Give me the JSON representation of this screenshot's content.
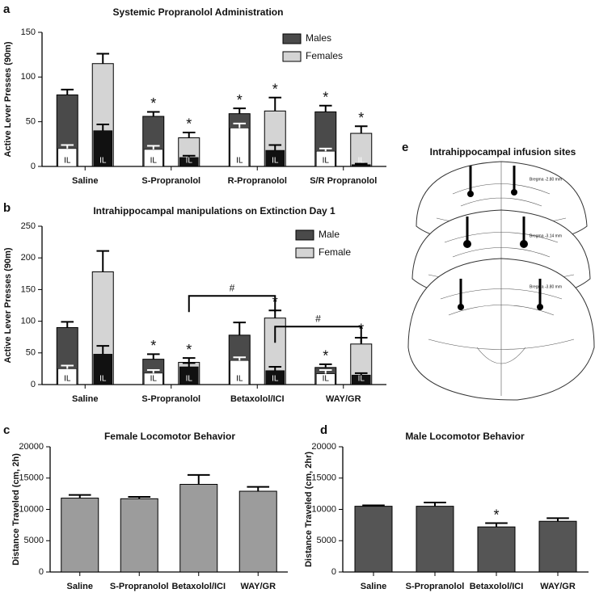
{
  "chart_data": [
    {
      "panel": "a",
      "type": "bar",
      "title": "Systemic Propranolol Administration",
      "y_label": "Active Lever Presses (90m)",
      "categories": [
        "Saline",
        "S-Propranolol",
        "R-Propranolol",
        "S/R Propranolol"
      ],
      "series": [
        {
          "name": "Males",
          "color": "#4a4a4a",
          "values": [
            80,
            56,
            59,
            61
          ],
          "errors": [
            6,
            5,
            6,
            7
          ],
          "inner_values": [
            20,
            19,
            43,
            17
          ],
          "inner_errors": [
            4,
            4,
            5,
            3
          ],
          "inner_color": "#ffffff",
          "inner_label": "IL",
          "markers": [
            null,
            "*",
            "*",
            "*"
          ]
        },
        {
          "name": "Females",
          "color": "#d4d4d4",
          "values": [
            115,
            32,
            62,
            37
          ],
          "errors": [
            11,
            6,
            15,
            8
          ],
          "inner_values": [
            40,
            10,
            18,
            2
          ],
          "inner_errors": [
            7,
            2,
            6,
            1
          ],
          "inner_color": "#111111",
          "inner_label": "IL",
          "markers": [
            null,
            "*",
            "*",
            "*"
          ]
        }
      ],
      "ylim": [
        0,
        150
      ],
      "yticks": [
        0,
        50,
        100,
        150
      ],
      "legend": "top-right"
    },
    {
      "panel": "b",
      "type": "bar",
      "title": "Intrahippocampal manipulations on Extinction Day 1",
      "y_label": "Active Lever Presses (90m)",
      "categories": [
        "Saline",
        "S-Propranolol",
        "Betaxolol/ICI",
        "WAY/GR"
      ],
      "series": [
        {
          "name": "Male",
          "color": "#4a4a4a",
          "values": [
            90,
            40,
            78,
            27
          ],
          "errors": [
            9,
            8,
            20,
            5
          ],
          "inner_values": [
            25,
            18,
            38,
            17
          ],
          "inner_errors": [
            5,
            5,
            5,
            6
          ],
          "inner_color": "#ffffff",
          "inner_label": "IL",
          "markers": [
            null,
            "*",
            null,
            "*"
          ]
        },
        {
          "name": "Female",
          "color": "#d4d4d4",
          "values": [
            178,
            35,
            105,
            64
          ],
          "errors": [
            33,
            7,
            12,
            10
          ],
          "inner_values": [
            48,
            28,
            22,
            15
          ],
          "inner_errors": [
            13,
            6,
            6,
            3
          ],
          "inner_color": "#111111",
          "inner_label": "IL",
          "markers": [
            null,
            "*",
            "*",
            "*"
          ]
        }
      ],
      "comparisons": [
        {
          "between": [
            "S-Propranolol",
            "Betaxolol/ICI"
          ],
          "label": "#"
        },
        {
          "between": [
            "Betaxolol/ICI",
            "WAY/GR"
          ],
          "label": "#"
        }
      ],
      "ylim": [
        0,
        250
      ],
      "yticks": [
        0,
        50,
        100,
        150,
        200,
        250
      ],
      "legend": "top-right"
    },
    {
      "panel": "c",
      "type": "bar",
      "title": "Female Locomotor Behavior",
      "y_label": "Distance Traveled (cm, 2h)",
      "categories": [
        "Saline",
        "S-Propranolol",
        "Betaxolol/ICI",
        "WAY/GR"
      ],
      "series": [
        {
          "color": "#9c9c9c",
          "values": [
            11800,
            11700,
            14000,
            12900
          ],
          "errors": [
            500,
            300,
            1500,
            700
          ]
        }
      ],
      "ylim": [
        0,
        20000
      ],
      "yticks": [
        0,
        5000,
        10000,
        15000,
        20000
      ]
    },
    {
      "panel": "d",
      "type": "bar",
      "title": "Male Locomotor Behavior",
      "y_label": "Distance Traveled (cm, 2hr)",
      "categories": [
        "Saline",
        "S-Propranolol",
        "Betaxolol/ICI",
        "WAY/GR"
      ],
      "series": [
        {
          "color": "#555555",
          "values": [
            10500,
            10500,
            7200,
            8100
          ],
          "errors": [
            150,
            600,
            600,
            500
          ],
          "markers": [
            null,
            null,
            "*",
            null
          ]
        }
      ],
      "ylim": [
        0,
        20000
      ],
      "yticks": [
        0,
        5000,
        10000,
        15000,
        20000
      ]
    }
  ],
  "figure_e": {
    "panel": "e",
    "title": "Intrahippocampal infusion sites",
    "labels": [
      "Bregma -2.80 mm",
      "Bregma -3.14 mm",
      "Bregma -3.80 mm"
    ]
  }
}
